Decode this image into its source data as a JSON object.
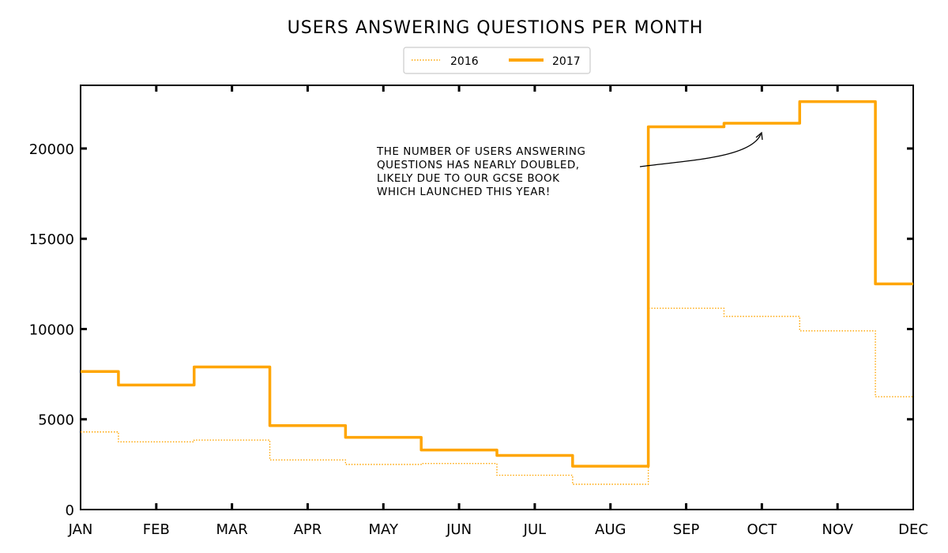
{
  "chart_data": {
    "type": "line",
    "title": "USERS ANSWERING QUESTIONS PER MONTH",
    "categories": [
      "JAN",
      "FEB",
      "MAR",
      "APR",
      "MAY",
      "JUN",
      "JUL",
      "AUG",
      "SEP",
      "OCT",
      "NOV",
      "DEC"
    ],
    "ylim": [
      0,
      23500
    ],
    "yticks": [
      0,
      5000,
      10000,
      15000,
      20000
    ],
    "legend_position": "top-center",
    "series": [
      {
        "name": "2016",
        "style": "dotted-step",
        "color": "#FFA500",
        "values": [
          4300,
          3750,
          3850,
          2750,
          2500,
          2550,
          1900,
          1400,
          11150,
          10700,
          9900,
          6250
        ]
      },
      {
        "name": "2017",
        "style": "solid-step",
        "color": "#FFA500",
        "values": [
          7650,
          6900,
          7900,
          4650,
          4000,
          3300,
          3000,
          2400,
          21200,
          21400,
          22600,
          12500
        ]
      }
    ],
    "annotation": {
      "lines": [
        "THE NUMBER OF USERS ANSWERING",
        "QUESTIONS HAS NEARLY DOUBLED,",
        "LIKELY DUE TO OUR GCSE BOOK",
        "WHICH LAUNCHED THIS YEAR!"
      ],
      "points_to": {
        "month": "OCT",
        "value": 21400
      }
    }
  }
}
